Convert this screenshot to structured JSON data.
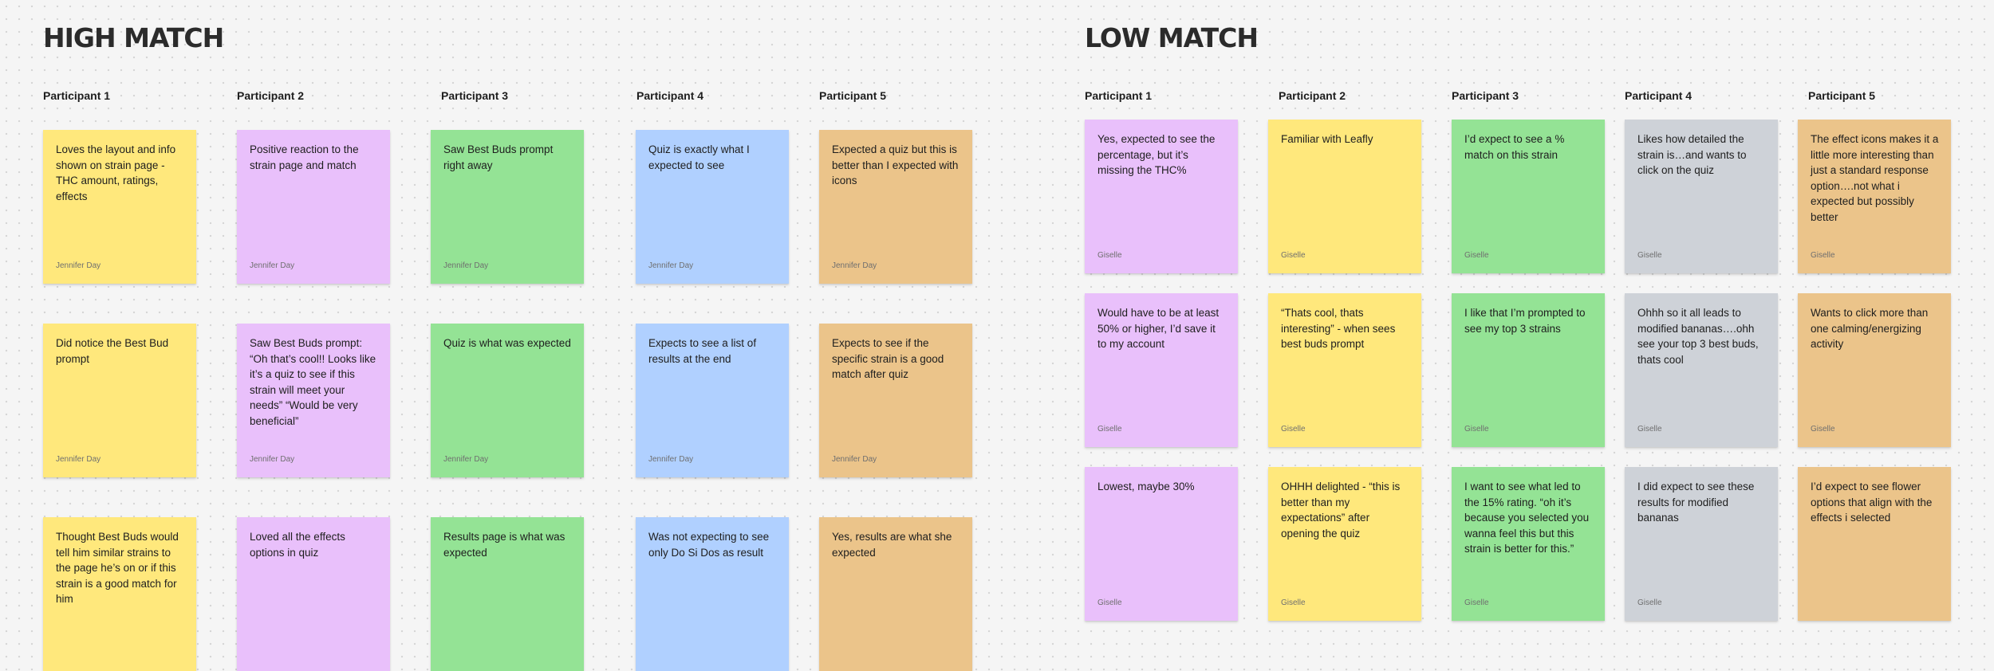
{
  "colors": {
    "yellow": "#ffe87c",
    "purple": "#e9c0fb",
    "green": "#94e395",
    "blue": "#b0d0ff",
    "orange": "#ebc48a",
    "gray": "#ced2d8"
  },
  "high_match": {
    "title": "HIGH MATCH",
    "columns": [
      {
        "participant": "Participant 1",
        "color": "yellow",
        "notes": [
          {
            "text": "Loves the layout and info shown on strain page - THC amount, ratings, effects",
            "author": "Jennifer Day"
          },
          {
            "text": "Did notice the Best Bud prompt",
            "author": "Jennifer Day"
          },
          {
            "text": "Thought Best Buds would tell him similar strains to the page he’s on or if this strain is a good match for him",
            "author": ""
          }
        ]
      },
      {
        "participant": "Participant 2",
        "color": "purple",
        "notes": [
          {
            "text": "Positive reaction to the strain page and match",
            "author": "Jennifer Day"
          },
          {
            "text": "Saw Best Buds prompt: “Oh that’s cool!! Looks like it’s a quiz to see if this strain will meet your needs” “Would be very beneficial”",
            "author": "Jennifer Day"
          },
          {
            "text": "Loved all the effects options in quiz",
            "author": ""
          }
        ]
      },
      {
        "participant": "Participant 3",
        "color": "green",
        "notes": [
          {
            "text": "Saw Best Buds prompt right away",
            "author": "Jennifer Day"
          },
          {
            "text": "Quiz is what was expected",
            "author": "Jennifer Day"
          },
          {
            "text": "Results page is what was expected",
            "author": ""
          }
        ]
      },
      {
        "participant": "Participant 4",
        "color": "blue",
        "notes": [
          {
            "text": "Quiz is exactly what I expected to see",
            "author": "Jennifer Day"
          },
          {
            "text": "Expects to see a list of results at the end",
            "author": "Jennifer Day"
          },
          {
            "text": "Was not expecting to see only Do Si Dos as result",
            "author": ""
          }
        ]
      },
      {
        "participant": "Participant 5",
        "color": "orange",
        "notes": [
          {
            "text": "Expected a quiz but this is better than I expected with icons",
            "author": "Jennifer Day"
          },
          {
            "text": "Expects to see if the specific strain is a good match after quiz",
            "author": "Jennifer Day"
          },
          {
            "text": "Yes, results are what she expected",
            "author": ""
          }
        ]
      }
    ]
  },
  "low_match": {
    "title": "LOW MATCH",
    "columns": [
      {
        "participant": "Participant 1",
        "color": "purple",
        "notes": [
          {
            "text": "Yes, expected to see the percentage, but it’s missing the THC%",
            "author": "Giselle"
          },
          {
            "text": "Would have to be at least 50% or higher, I’d save it to my account",
            "author": "Giselle"
          },
          {
            "text": "Lowest, maybe 30%",
            "author": "Giselle"
          }
        ]
      },
      {
        "participant": "Participant 2",
        "color": "yellow",
        "notes": [
          {
            "text": "Familiar with Leafly",
            "author": "Giselle"
          },
          {
            "text": "“Thats cool, thats interesting” - when sees best buds prompt",
            "author": "Giselle"
          },
          {
            "text": "OHHH delighted - “this is better than my expectations” after opening the quiz",
            "author": "Giselle"
          }
        ]
      },
      {
        "participant": "Participant 3",
        "color": "green",
        "notes": [
          {
            "text": "I’d expect to see a % match on this strain",
            "author": "Giselle"
          },
          {
            "text": "I like that I’m prompted to see my top 3 strains",
            "author": "Giselle"
          },
          {
            "text": "I want to see what led to the 15% rating. “oh it’s because you selected you wanna feel this but this strain is better for this.”",
            "author": "Giselle"
          }
        ]
      },
      {
        "participant": "Participant 4",
        "color": "gray",
        "notes": [
          {
            "text": "Likes how detailed the strain is…and wants to click on the quiz",
            "author": "Giselle"
          },
          {
            "text": "Ohhh so it all leads to modified bananas….ohh see your top 3 best buds, thats cool",
            "author": "Giselle"
          },
          {
            "text": "I did expect to see these results for modified bananas",
            "author": "Giselle"
          }
        ]
      },
      {
        "participant": "Participant 5",
        "color": "orange",
        "notes": [
          {
            "text": "The effect icons makes it a little more interesting than just a standard response option….not what i expected but possibly better",
            "author": "Giselle"
          },
          {
            "text": "Wants to click more than one calming/energizing activity",
            "author": "Giselle"
          },
          {
            "text": "I’d expect to see flower options that align with the effects i selected",
            "author": ""
          }
        ]
      }
    ]
  }
}
